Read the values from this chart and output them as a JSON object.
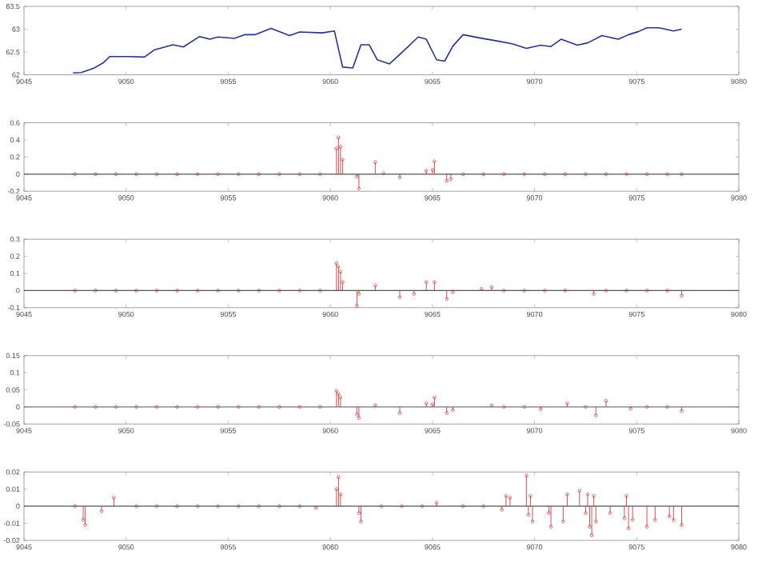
{
  "chart_data": [
    {
      "type": "line",
      "xlim": [
        9045,
        9080
      ],
      "xticks": [
        9045,
        9050,
        9055,
        9060,
        9065,
        9070,
        9075,
        9080
      ],
      "ylim": [
        62,
        63.5
      ],
      "yticks": [
        62,
        62.5,
        63,
        63.5
      ],
      "series": [
        {
          "color": "#2233a0",
          "x": [
            9047.4,
            9047.8,
            9048.4,
            9048.9,
            9049.2,
            9050.1,
            9050.9,
            9051.4,
            9052.3,
            9052.8,
            9053.6,
            9054.1,
            9054.5,
            9055.3,
            9055.8,
            9056.3,
            9057.1,
            9058.0,
            9058.5,
            9059.6,
            9060.2,
            9060.6,
            9061.1,
            9061.5,
            9061.9,
            9062.3,
            9062.9,
            9063.6,
            9064.3,
            9064.7,
            9065.2,
            9065.6,
            9066.0,
            9066.5,
            9067.3,
            9068.2,
            9068.9,
            9069.6,
            9070.3,
            9070.8,
            9071.3,
            9072.1,
            9072.6,
            9073.3,
            9074.1,
            9074.6,
            9075.1,
            9075.5,
            9076.1,
            9076.8,
            9077.2
          ],
          "values": [
            62.04,
            62.05,
            62.14,
            62.27,
            62.4,
            62.4,
            62.39,
            62.55,
            62.66,
            62.61,
            62.84,
            62.78,
            62.83,
            62.8,
            62.88,
            62.88,
            63.02,
            62.86,
            62.94,
            62.92,
            62.96,
            62.17,
            62.15,
            62.66,
            62.66,
            62.33,
            62.24,
            62.53,
            62.83,
            62.78,
            62.33,
            62.3,
            62.63,
            62.88,
            62.81,
            62.74,
            62.68,
            62.58,
            62.65,
            62.62,
            62.78,
            62.65,
            62.7,
            62.86,
            62.78,
            62.88,
            62.95,
            63.03,
            63.03,
            62.96,
            63.0
          ]
        }
      ]
    },
    {
      "type": "lollipop",
      "marker": "circle",
      "xlim": [
        9045,
        9080
      ],
      "xticks": [
        9045,
        9050,
        9055,
        9060,
        9065,
        9070,
        9075,
        9080
      ],
      "ylim": [
        -0.2,
        0.6
      ],
      "yticks": [
        -0.2,
        0,
        0.2,
        0.4,
        0.6
      ],
      "ref_lines": [
        {
          "axis": "y",
          "value": 0,
          "color": "#555555"
        }
      ],
      "series": [
        {
          "color": "#cc2222",
          "x": [
            9060.3,
            9060.4,
            9060.5,
            9060.6,
            9061.3,
            9061.4,
            9062.2,
            9062.6,
            9063.4,
            9064.7,
            9065.0,
            9065.1,
            9065.7,
            9065.9,
            9047.5,
            9048.5,
            9049.5,
            9050.5,
            9051.5,
            9052.5,
            9053.5,
            9054.5,
            9055.5,
            9056.5,
            9057.5,
            9058.5,
            9059.5,
            9066.5,
            9067.5,
            9068.5,
            9069.5,
            9070.5,
            9071.5,
            9072.5,
            9073.5,
            9074.5,
            9075.5,
            9076.5,
            9077.2
          ],
          "values": [
            0.3,
            0.43,
            0.32,
            0.17,
            -0.03,
            -0.17,
            0.14,
            0.01,
            -0.04,
            0.04,
            0.05,
            0.15,
            -0.08,
            -0.06,
            0,
            0,
            0,
            0,
            0,
            0,
            0,
            0,
            0,
            0,
            0,
            0,
            0,
            0,
            0,
            0,
            0,
            0,
            0,
            0,
            0,
            0,
            0,
            0,
            0
          ]
        }
      ]
    },
    {
      "type": "lollipop",
      "marker": "circle",
      "xlim": [
        9045,
        9080
      ],
      "xticks": [
        9045,
        9050,
        9055,
        9060,
        9065,
        9070,
        9075,
        9080
      ],
      "ylim": [
        -0.1,
        0.3
      ],
      "yticks": [
        -0.1,
        0,
        0.1,
        0.2,
        0.3
      ],
      "ref_lines": [
        {
          "axis": "y",
          "value": 0,
          "color": "#555555"
        }
      ],
      "series": [
        {
          "color": "#cc2222",
          "x": [
            9060.3,
            9060.4,
            9060.5,
            9060.6,
            9061.4,
            9061.3,
            9062.2,
            9063.4,
            9064.1,
            9064.7,
            9065.1,
            9065.7,
            9066.0,
            9067.4,
            9067.9,
            9072.9,
            9077.2,
            9047.5,
            9048.5,
            9049.5,
            9050.5,
            9051.5,
            9052.5,
            9053.5,
            9054.5,
            9055.5,
            9056.5,
            9057.5,
            9058.5,
            9059.5,
            9068.5,
            9069.5,
            9070.5,
            9071.5,
            9073.5,
            9074.5,
            9075.5,
            9076.5
          ],
          "values": [
            0.16,
            0.14,
            0.11,
            0.05,
            -0.02,
            -0.09,
            0.03,
            -0.04,
            -0.02,
            0.05,
            0.05,
            -0.05,
            -0.01,
            0.01,
            0.02,
            -0.02,
            -0.03,
            0,
            0,
            0,
            0,
            0,
            0,
            0,
            0,
            0,
            0,
            0,
            0,
            0,
            0,
            0,
            0,
            0,
            0,
            0,
            0,
            0
          ]
        }
      ]
    },
    {
      "type": "lollipop",
      "marker": "circle",
      "xlim": [
        9045,
        9080
      ],
      "xticks": [
        9045,
        9050,
        9055,
        9060,
        9065,
        9070,
        9075,
        9080
      ],
      "ylim": [
        -0.05,
        0.15
      ],
      "yticks": [
        -0.05,
        0,
        0.05,
        0.1,
        0.15
      ],
      "ref_lines": [
        {
          "axis": "y",
          "value": 0,
          "color": "#555555"
        }
      ],
      "series": [
        {
          "color": "#cc2222",
          "x": [
            9060.3,
            9060.4,
            9060.5,
            9061.3,
            9061.4,
            9062.2,
            9063.4,
            9064.7,
            9065.0,
            9065.1,
            9065.7,
            9066.0,
            9067.9,
            9070.3,
            9071.6,
            9073.0,
            9073.5,
            9074.7,
            9077.2,
            9047.5,
            9048.5,
            9049.5,
            9050.5,
            9051.5,
            9052.5,
            9053.5,
            9054.5,
            9055.5,
            9056.5,
            9057.5,
            9058.5,
            9059.5,
            9068.5,
            9069.5,
            9072.5,
            9075.5,
            9076.5
          ],
          "values": [
            0.047,
            0.038,
            0.028,
            -0.022,
            -0.032,
            0.005,
            -0.018,
            0.01,
            0.008,
            0.028,
            -0.018,
            -0.009,
            0.005,
            -0.007,
            0.01,
            -0.025,
            0.018,
            -0.005,
            -0.012,
            0,
            0,
            0,
            0,
            0,
            0,
            0,
            0,
            0,
            0,
            0,
            0,
            0,
            0,
            0,
            0,
            0,
            0
          ]
        }
      ]
    },
    {
      "type": "lollipop",
      "marker": "circle",
      "xlim": [
        9045,
        9080
      ],
      "xticks": [
        9045,
        9050,
        9055,
        9060,
        9065,
        9070,
        9075,
        9080
      ],
      "ylim": [
        -0.02,
        0.02
      ],
      "yticks": [
        -0.02,
        -0.01,
        0,
        0.01,
        0.02
      ],
      "ref_lines": [
        {
          "axis": "y",
          "value": 0,
          "color": "#555555"
        }
      ],
      "series": [
        {
          "color": "#cc2222",
          "x": [
            9047.9,
            9048.0,
            9048.8,
            9049.4,
            9059.3,
            9060.4,
            9060.3,
            9060.5,
            9061.4,
            9061.5,
            9065.2,
            9068.4,
            9068.6,
            9068.8,
            9069.6,
            9069.7,
            9069.8,
            9069.9,
            9070.7,
            9070.8,
            9071.4,
            9071.6,
            9072.2,
            9072.5,
            9072.6,
            9072.7,
            9072.8,
            9072.9,
            9073.0,
            9073.7,
            9074.4,
            9074.5,
            9074.6,
            9074.8,
            9075.5,
            9075.9,
            9076.6,
            9076.8,
            9077.2,
            9047.5,
            9050.5,
            9051.5,
            9052.5,
            9053.5,
            9054.5,
            9055.5,
            9056.5,
            9057.5,
            9058.5,
            9062.5,
            9063.5,
            9064.5,
            9066.5,
            9067.5
          ],
          "values": [
            -0.008,
            -0.011,
            -0.003,
            0.005,
            -0.001,
            0.017,
            0.01,
            0.007,
            -0.004,
            -0.009,
            0.002,
            -0.002,
            0.006,
            0.005,
            0.018,
            -0.005,
            0.006,
            -0.009,
            -0.004,
            -0.012,
            -0.009,
            0.007,
            0.009,
            -0.004,
            0.007,
            -0.012,
            -0.017,
            0.006,
            -0.009,
            -0.004,
            -0.007,
            0.006,
            -0.013,
            -0.008,
            -0.012,
            -0.008,
            -0.006,
            -0.008,
            -0.011,
            0,
            0,
            0,
            0,
            0,
            0,
            0,
            0,
            0,
            0,
            0,
            0,
            0,
            0,
            0
          ]
        }
      ]
    }
  ]
}
